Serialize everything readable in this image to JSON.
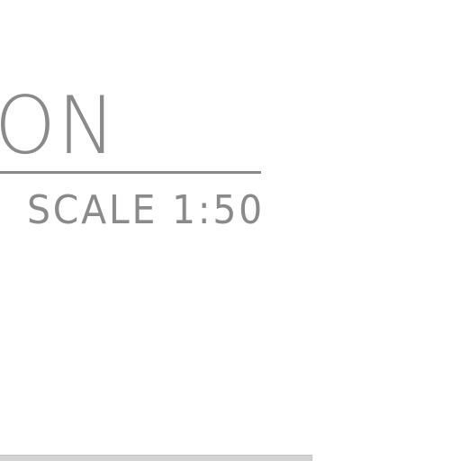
{
  "drawing": {
    "title_fragment": "ON",
    "scale_label": "SCALE 1:50"
  },
  "colors": {
    "ink": "#8a8a8a",
    "background": "#ffffff",
    "bottom_bar": "#d4d4d4"
  }
}
